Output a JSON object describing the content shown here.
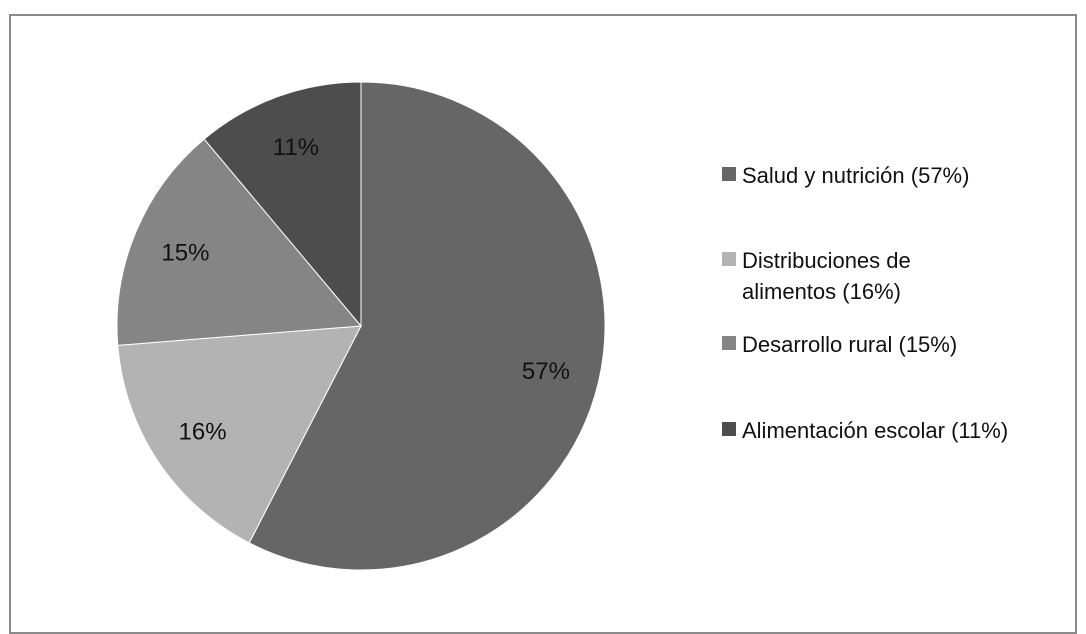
{
  "chart_data": {
    "type": "pie",
    "title": "",
    "start_angle_deg": 0,
    "direction": "clockwise",
    "legend_position": "right",
    "slices": [
      {
        "label": "Salud y nutrición (57%)",
        "value": 57,
        "display": "57%",
        "color": "#666666"
      },
      {
        "label": "Distribuciones de alimentos (16%)",
        "value": 16,
        "display": "16%",
        "color": "#b3b3b3"
      },
      {
        "label": "Desarrollo rural (15%)",
        "value": 15,
        "display": "15%",
        "color": "#858585"
      },
      {
        "label": "Alimentación escolar (11%)",
        "value": 11,
        "display": "11%",
        "color": "#4d4d4d"
      }
    ],
    "legend": [
      {
        "lines": [
          "Salud y nutrición (57%)"
        ],
        "color": "#666666"
      },
      {
        "lines": [
          "Distribuciones de",
          "alimentos (16%)"
        ],
        "color": "#b3b3b3"
      },
      {
        "lines": [
          "Desarrollo rural (15%)"
        ],
        "color": "#858585"
      },
      {
        "lines": [
          "Alimentación escolar (11%)"
        ],
        "color": "#4d4d4d"
      }
    ]
  }
}
